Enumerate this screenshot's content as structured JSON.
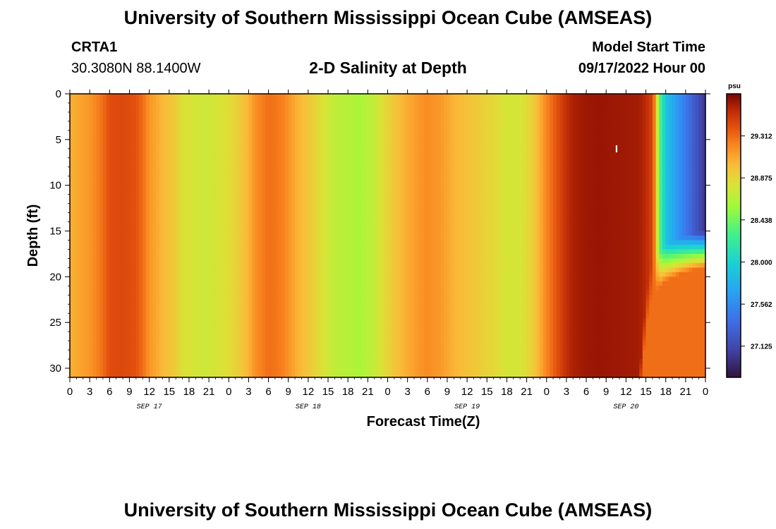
{
  "header": {
    "title": "University of Southern Mississippi Ocean Cube (AMSEAS)",
    "station": "CRTA1",
    "coords": "30.3080N  88.1400W",
    "subtitle": "2-D Salinity at Depth",
    "model_start_label": "Model Start Time",
    "model_start_value": "09/17/2022 Hour 00"
  },
  "footer": {
    "title": "University of Southern Mississippi Ocean Cube (AMSEAS)"
  },
  "chart_data": {
    "type": "heatmap",
    "xlabel": "Forecast Time(Z)",
    "ylabel": "Depth (ft)",
    "x_tick_labels": [
      "0",
      "3",
      "6",
      "9",
      "12",
      "15",
      "18",
      "21",
      "0",
      "3",
      "6",
      "9",
      "12",
      "15",
      "18",
      "21",
      "0",
      "3",
      "6",
      "9",
      "12",
      "15",
      "18",
      "21",
      "0",
      "3",
      "6",
      "9",
      "12",
      "15",
      "18",
      "21",
      "0"
    ],
    "x_range_hours": [
      0,
      96
    ],
    "date_labels": [
      {
        "label": "SEP 17",
        "hour": 12
      },
      {
        "label": "SEP 18",
        "hour": 36
      },
      {
        "label": "SEP 19",
        "hour": 60
      },
      {
        "label": "SEP 20",
        "hour": 84
      }
    ],
    "y_ticks": [
      0,
      5,
      10,
      15,
      20,
      25,
      30
    ],
    "y_range": [
      0,
      31
    ],
    "y_inverted": true,
    "colorbar": {
      "unit": "psu",
      "ticks": [
        "29.312",
        "28.875",
        "28.438",
        "28.000",
        "27.562",
        "27.125"
      ],
      "min": 26.8,
      "max": 29.75
    },
    "surface_salinity_by_hour": [
      [
        0,
        29.05
      ],
      [
        3,
        29.15
      ],
      [
        5,
        29.3
      ],
      [
        6,
        29.42
      ],
      [
        8,
        29.44
      ],
      [
        10,
        29.4
      ],
      [
        11,
        29.3
      ],
      [
        12,
        29.16
      ],
      [
        14,
        29.02
      ],
      [
        16,
        28.92
      ],
      [
        17,
        28.82
      ],
      [
        19,
        28.77
      ],
      [
        21,
        28.76
      ],
      [
        23,
        28.8
      ],
      [
        25,
        28.88
      ],
      [
        27,
        29.04
      ],
      [
        28,
        29.18
      ],
      [
        30,
        29.3
      ],
      [
        32,
        29.25
      ],
      [
        34,
        29.08
      ],
      [
        36,
        28.95
      ],
      [
        38,
        28.82
      ],
      [
        40,
        28.7
      ],
      [
        42,
        28.66
      ],
      [
        44,
        28.62
      ],
      [
        46,
        28.72
      ],
      [
        48,
        28.88
      ],
      [
        50,
        29.02
      ],
      [
        52,
        29.12
      ],
      [
        54,
        29.2
      ],
      [
        56,
        29.14
      ],
      [
        58,
        29.04
      ],
      [
        60,
        28.98
      ],
      [
        62,
        28.92
      ],
      [
        64,
        28.86
      ],
      [
        66,
        28.78
      ],
      [
        68,
        28.78
      ],
      [
        70,
        28.92
      ],
      [
        72,
        29.22
      ],
      [
        74,
        29.45
      ],
      [
        75,
        29.56
      ],
      [
        76,
        29.62
      ],
      [
        78,
        29.66
      ],
      [
        80,
        29.67
      ],
      [
        82,
        29.66
      ],
      [
        84,
        29.65
      ],
      [
        86,
        29.64
      ],
      [
        87,
        29.58
      ],
      [
        88,
        29.45
      ],
      [
        88.5,
        29.1
      ],
      [
        89,
        28.4
      ],
      [
        90,
        27.9
      ],
      [
        92,
        27.6
      ],
      [
        94,
        27.3
      ],
      [
        96,
        27.0
      ]
    ],
    "lower_layer_salinity": 29.3,
    "halocline_depth_ft": [
      [
        86,
        31
      ],
      [
        87,
        22
      ],
      [
        88,
        18
      ],
      [
        90,
        16.5
      ],
      [
        92,
        15.8
      ],
      [
        94,
        15.3
      ],
      [
        96,
        15.0
      ]
    ],
    "marker_label": "I"
  }
}
